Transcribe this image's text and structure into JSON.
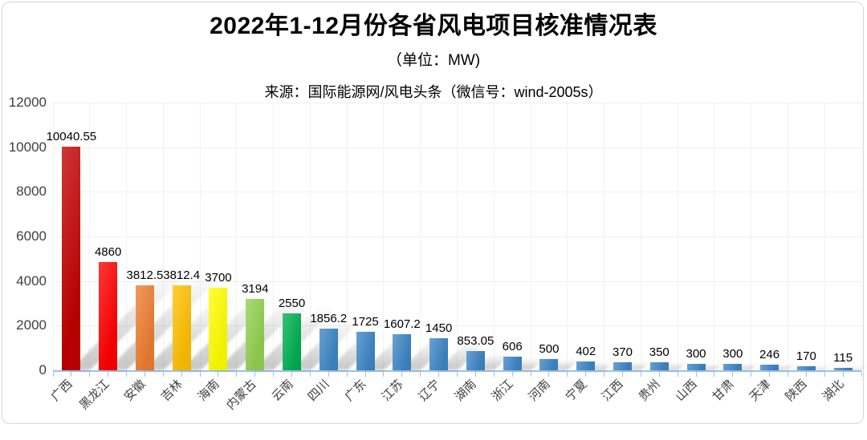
{
  "chart": {
    "title": "2022年1-12月份各省风电项目核准情况表",
    "unit_label": "（单位：MW)",
    "source": "来源：国际能源网/风电头条（微信号：wind-2005s）"
  },
  "chart_data": {
    "type": "bar",
    "title": "2022年1-12月份各省风电项目核准情况表",
    "unit": "MW",
    "source": "国际能源网/风电头条（微信号：wind-2005s）",
    "categories": [
      "广西",
      "黑龙江",
      "安徽",
      "吉林",
      "海南",
      "内蒙古",
      "云南",
      "四川",
      "广东",
      "江苏",
      "辽宁",
      "湖南",
      "浙江",
      "河南",
      "宁夏",
      "江西",
      "贵州",
      "山西",
      "甘肃",
      "天津",
      "陕西",
      "湖北"
    ],
    "values": [
      10040.55,
      4860,
      3812.5,
      3812.4,
      3700,
      3194,
      2550,
      1856.2,
      1725,
      1607.2,
      1450,
      853.05,
      606,
      500,
      402,
      370,
      350,
      300,
      300,
      246,
      170,
      115
    ],
    "bar_colors": [
      "#C00000",
      "#FF0000",
      "#ED7D31",
      "#FFC000",
      "#FFFF00",
      "#92D050",
      "#00B050",
      "#3E86C6",
      "#3E86C6",
      "#3E86C6",
      "#3E86C6",
      "#3E86C6",
      "#3E86C6",
      "#3E86C6",
      "#3E86C6",
      "#3E86C6",
      "#3E86C6",
      "#3E86C6",
      "#3E86C6",
      "#3E86C6",
      "#3E86C6",
      "#3E86C6"
    ],
    "xlabel": "",
    "ylabel": "",
    "ylim": [
      0,
      12000
    ],
    "yticks": [
      0,
      2000,
      4000,
      6000,
      8000,
      10000,
      12000
    ],
    "grid": true,
    "legend": "none",
    "axis_color": "#9DC3E6",
    "gridline_color": "#EFEFEF"
  }
}
